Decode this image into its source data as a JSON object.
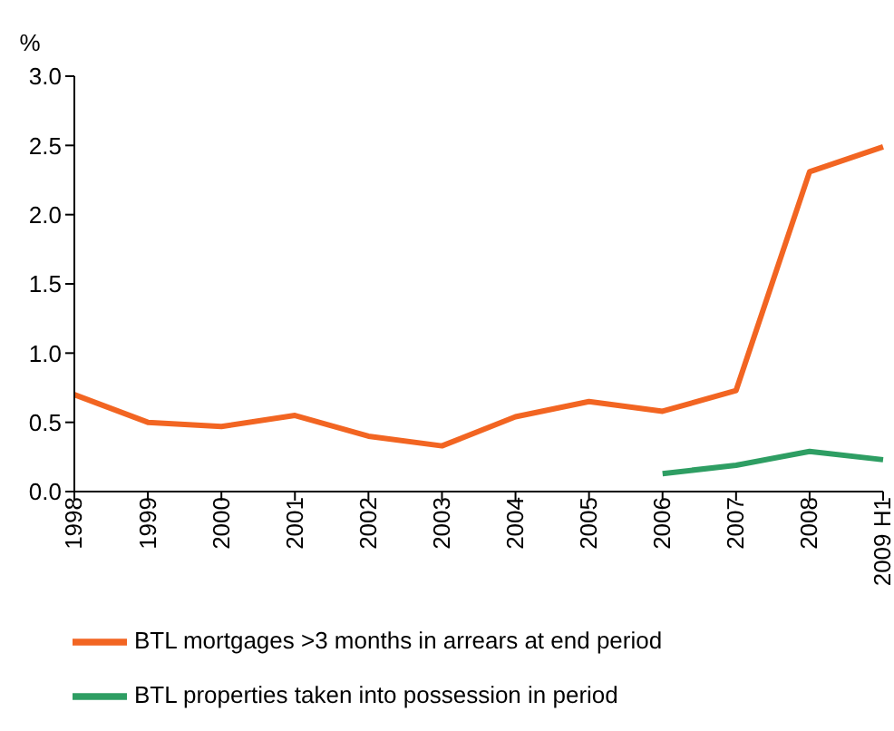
{
  "chart_data": {
    "type": "line",
    "ylabel": "%",
    "categories": [
      "1998",
      "1999",
      "2000",
      "2001",
      "2002",
      "2003",
      "2004",
      "2005",
      "2006",
      "2007",
      "2008",
      "2009 H1"
    ],
    "series": [
      {
        "name": "BTL mortgages >3 months in arrears at end period",
        "color": "#f26522",
        "values": [
          0.7,
          0.5,
          0.47,
          0.55,
          0.4,
          0.33,
          0.54,
          0.65,
          0.58,
          0.73,
          2.31,
          2.49
        ]
      },
      {
        "name": "BTL properties taken into possession in period",
        "color": "#2e9e63",
        "values": [
          null,
          null,
          null,
          null,
          null,
          null,
          null,
          null,
          0.13,
          0.19,
          0.29,
          0.23
        ]
      }
    ],
    "ylim": [
      0,
      3
    ],
    "yticks": [
      {
        "value": 0,
        "label": "0.0"
      },
      {
        "value": 0.5,
        "label": "0.5"
      },
      {
        "value": 1,
        "label": "1.0"
      },
      {
        "value": 1.5,
        "label": "1.5"
      },
      {
        "value": 2,
        "label": "2.0"
      },
      {
        "value": 2.5,
        "label": "2.5"
      },
      {
        "value": 3,
        "label": "3.0"
      }
    ],
    "grid": false,
    "legend": "bottom",
    "marker": "none",
    "line_style": "solid"
  }
}
